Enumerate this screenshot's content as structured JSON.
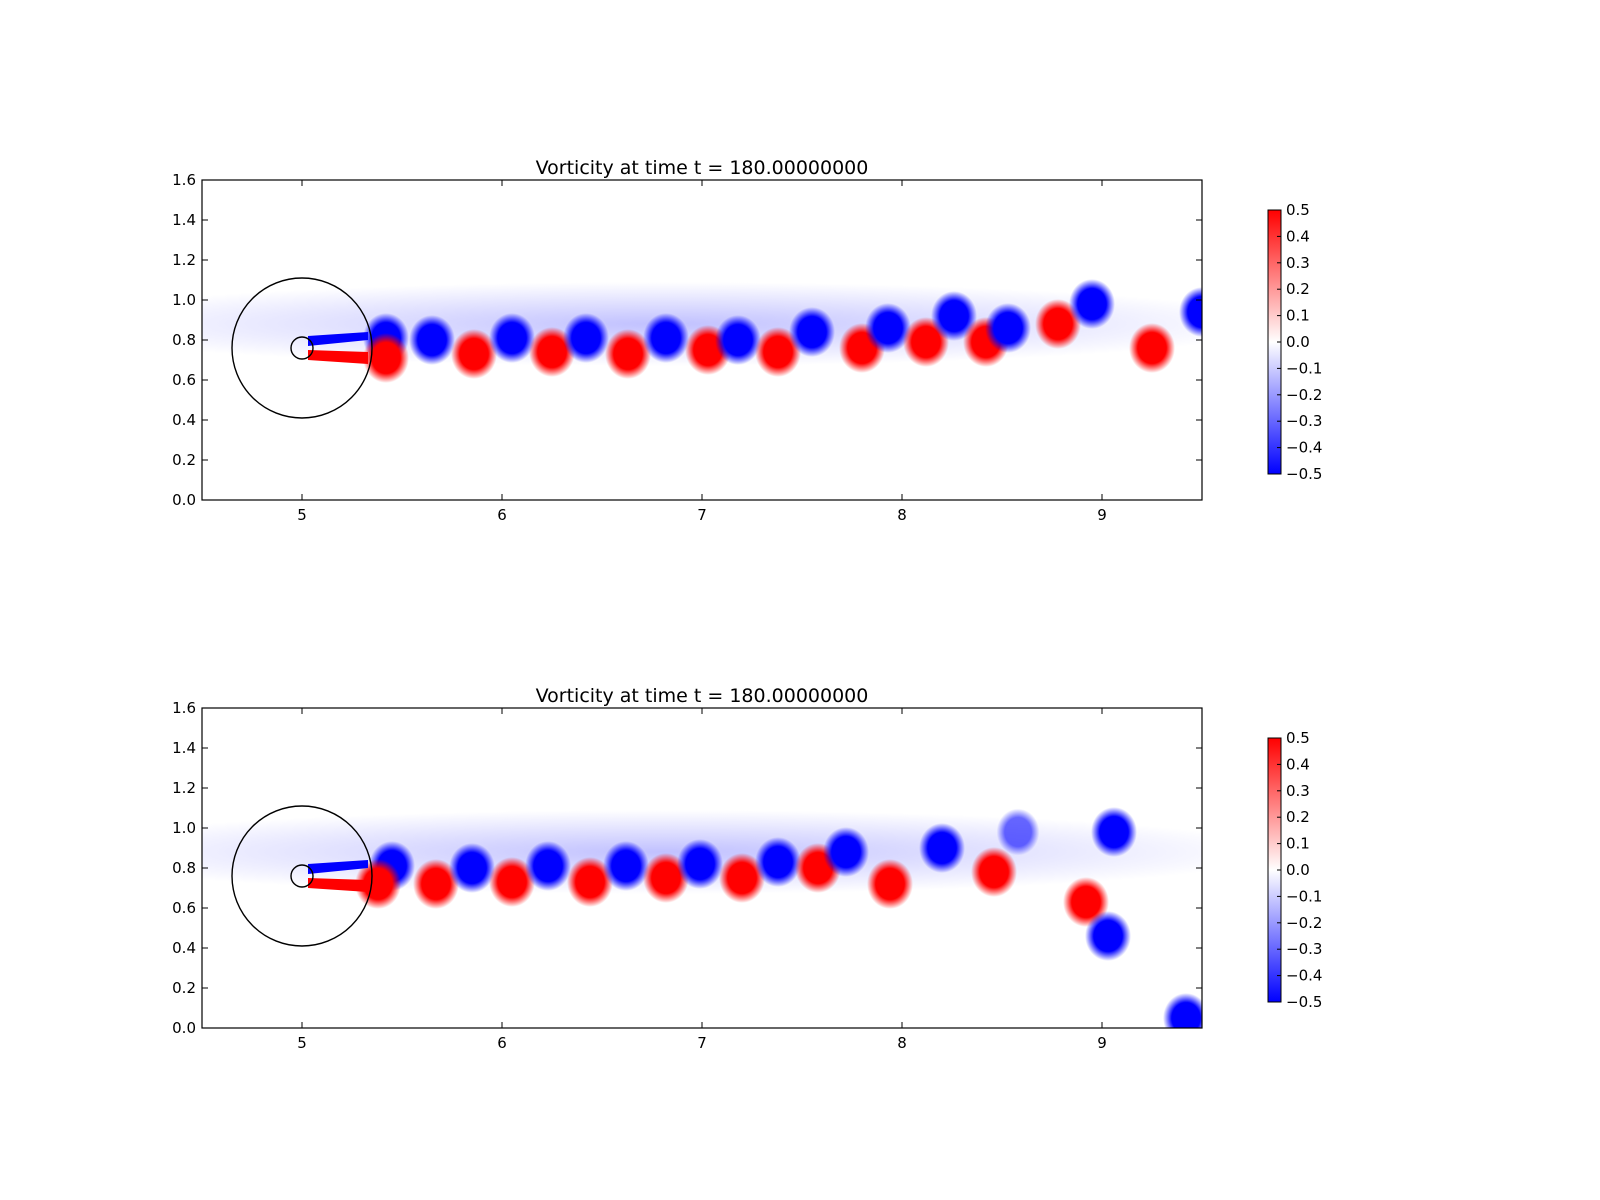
{
  "chart_data": [
    {
      "type": "heatmap",
      "title": "Vorticity at time t =   180.00000000",
      "xlabel": "",
      "ylabel": "",
      "xlim": [
        4.5,
        9.5
      ],
      "ylim": [
        0.0,
        1.6
      ],
      "xticks": [
        "5",
        "6",
        "7",
        "8",
        "9"
      ],
      "yticks": [
        "0.0",
        "0.2",
        "0.4",
        "0.6",
        "0.8",
        "1.0",
        "1.2",
        "1.4",
        "1.6"
      ],
      "colormap": "bwr",
      "colorbar": {
        "range": [
          -0.5,
          0.5
        ],
        "ticks": [
          "0.5",
          "0.4",
          "0.3",
          "0.2",
          "0.1",
          "0.0",
          "−0.1",
          "−0.2",
          "−0.3",
          "−0.4",
          "−0.5"
        ]
      },
      "overlay_circles": [
        {
          "cx": 5.0,
          "cy": 0.76,
          "r": 0.35
        },
        {
          "cx": 5.0,
          "cy": 0.76,
          "r": 0.055
        }
      ],
      "vortices": [
        {
          "x": 5.42,
          "y": 0.81,
          "w": -0.5
        },
        {
          "x": 5.42,
          "y": 0.71,
          "w": 0.5
        },
        {
          "x": 5.65,
          "y": 0.8,
          "w": -0.5
        },
        {
          "x": 5.86,
          "y": 0.73,
          "w": 0.5
        },
        {
          "x": 6.05,
          "y": 0.81,
          "w": -0.5
        },
        {
          "x": 6.25,
          "y": 0.74,
          "w": 0.5
        },
        {
          "x": 6.42,
          "y": 0.81,
          "w": -0.5
        },
        {
          "x": 6.63,
          "y": 0.73,
          "w": 0.5
        },
        {
          "x": 6.82,
          "y": 0.81,
          "w": -0.5
        },
        {
          "x": 7.03,
          "y": 0.75,
          "w": 0.5
        },
        {
          "x": 7.18,
          "y": 0.8,
          "w": -0.5
        },
        {
          "x": 7.38,
          "y": 0.74,
          "w": 0.5
        },
        {
          "x": 7.55,
          "y": 0.84,
          "w": -0.5
        },
        {
          "x": 7.8,
          "y": 0.76,
          "w": 0.5
        },
        {
          "x": 7.93,
          "y": 0.86,
          "w": -0.5
        },
        {
          "x": 8.12,
          "y": 0.79,
          "w": 0.5
        },
        {
          "x": 8.26,
          "y": 0.92,
          "w": -0.5
        },
        {
          "x": 8.42,
          "y": 0.79,
          "w": 0.5
        },
        {
          "x": 8.53,
          "y": 0.86,
          "w": -0.5
        },
        {
          "x": 8.78,
          "y": 0.88,
          "w": 0.5
        },
        {
          "x": 8.95,
          "y": 0.98,
          "w": -0.5
        },
        {
          "x": 9.25,
          "y": 0.76,
          "w": 0.5
        },
        {
          "x": 9.5,
          "y": 0.94,
          "w": -0.5
        }
      ]
    },
    {
      "type": "heatmap",
      "title": "Vorticity at time t =   180.00000000",
      "xlabel": "",
      "ylabel": "",
      "xlim": [
        4.5,
        9.5
      ],
      "ylim": [
        0.0,
        1.6
      ],
      "xticks": [
        "5",
        "6",
        "7",
        "8",
        "9"
      ],
      "yticks": [
        "0.0",
        "0.2",
        "0.4",
        "0.6",
        "0.8",
        "1.0",
        "1.2",
        "1.4",
        "1.6"
      ],
      "colormap": "bwr",
      "colorbar": {
        "range": [
          -0.5,
          0.5
        ],
        "ticks": [
          "0.5",
          "0.4",
          "0.3",
          "0.2",
          "0.1",
          "0.0",
          "−0.1",
          "−0.2",
          "−0.3",
          "−0.4",
          "−0.5"
        ]
      },
      "overlay_circles": [
        {
          "cx": 5.0,
          "cy": 0.76,
          "r": 0.35
        },
        {
          "cx": 5.0,
          "cy": 0.76,
          "r": 0.055
        }
      ],
      "vortices": [
        {
          "x": 5.45,
          "y": 0.81,
          "w": -0.5
        },
        {
          "x": 5.38,
          "y": 0.72,
          "w": 0.5
        },
        {
          "x": 5.67,
          "y": 0.72,
          "w": 0.5
        },
        {
          "x": 5.85,
          "y": 0.8,
          "w": -0.5
        },
        {
          "x": 6.05,
          "y": 0.73,
          "w": 0.5
        },
        {
          "x": 6.23,
          "y": 0.81,
          "w": -0.5
        },
        {
          "x": 6.44,
          "y": 0.73,
          "w": 0.5
        },
        {
          "x": 6.62,
          "y": 0.81,
          "w": -0.5
        },
        {
          "x": 6.82,
          "y": 0.75,
          "w": 0.5
        },
        {
          "x": 6.99,
          "y": 0.82,
          "w": -0.5
        },
        {
          "x": 7.2,
          "y": 0.75,
          "w": 0.5
        },
        {
          "x": 7.38,
          "y": 0.83,
          "w": -0.5
        },
        {
          "x": 7.58,
          "y": 0.8,
          "w": 0.5
        },
        {
          "x": 7.72,
          "y": 0.88,
          "w": -0.5
        },
        {
          "x": 7.94,
          "y": 0.72,
          "w": 0.5
        },
        {
          "x": 8.2,
          "y": 0.9,
          "w": -0.5
        },
        {
          "x": 8.46,
          "y": 0.78,
          "w": 0.5
        },
        {
          "x": 8.58,
          "y": 0.98,
          "w": -0.3
        },
        {
          "x": 9.06,
          "y": 0.98,
          "w": -0.5
        },
        {
          "x": 8.92,
          "y": 0.63,
          "w": 0.5
        },
        {
          "x": 9.03,
          "y": 0.46,
          "w": -0.5
        },
        {
          "x": 9.42,
          "y": 0.05,
          "w": -0.5
        }
      ]
    }
  ]
}
